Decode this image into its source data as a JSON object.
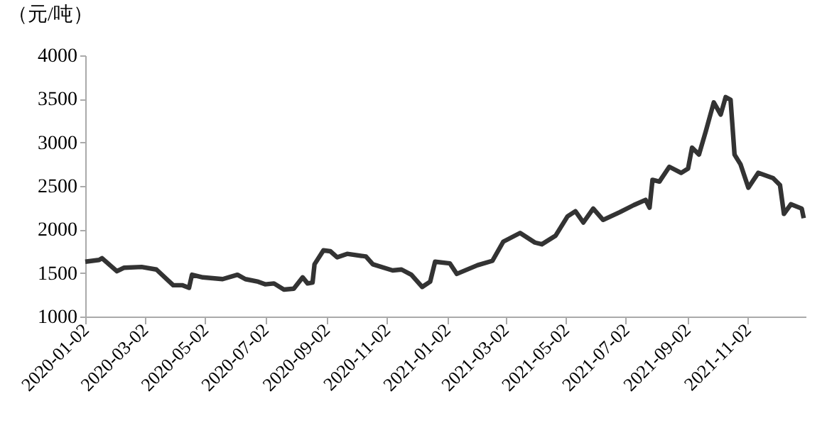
{
  "chart_data": {
    "type": "line",
    "ylabel": "（元/吨）",
    "x": [
      "2020-01-02",
      "2020-01-16",
      "2020-01-19",
      "2020-02-03",
      "2020-02-10",
      "2020-02-28",
      "2020-03-14",
      "2020-03-31",
      "2020-04-09",
      "2020-04-16",
      "2020-04-19",
      "2020-04-30",
      "2020-05-20",
      "2020-06-04",
      "2020-06-12",
      "2020-06-25",
      "2020-07-02",
      "2020-07-11",
      "2020-07-21",
      "2020-07-31",
      "2020-08-09",
      "2020-08-14",
      "2020-08-19",
      "2020-08-21",
      "2020-08-30",
      "2020-09-06",
      "2020-09-13",
      "2020-09-23",
      "2020-10-12",
      "2020-10-19",
      "2020-11-08",
      "2020-11-17",
      "2020-11-27",
      "2020-12-08",
      "2020-12-16",
      "2020-12-21",
      "2021-01-05",
      "2021-01-12",
      "2021-02-02",
      "2021-02-17",
      "2021-02-28",
      "2021-03-17",
      "2021-04-01",
      "2021-04-08",
      "2021-04-22",
      "2021-05-04",
      "2021-05-12",
      "2021-05-20",
      "2021-05-30",
      "2021-06-09",
      "2021-06-26",
      "2021-07-10",
      "2021-07-22",
      "2021-07-26",
      "2021-07-29",
      "2021-08-05",
      "2021-08-15",
      "2021-08-27",
      "2021-09-03",
      "2021-09-07",
      "2021-09-14",
      "2021-09-21",
      "2021-09-29",
      "2021-10-06",
      "2021-10-11",
      "2021-10-16",
      "2021-10-20",
      "2021-10-26",
      "2021-11-03",
      "2021-11-13",
      "2021-11-28",
      "2021-12-05",
      "2021-12-09",
      "2021-12-16",
      "2021-12-27",
      "2021-12-29"
    ],
    "series": [
      {
        "color": "#333333",
        "values": [
          1630,
          1650,
          1670,
          1520,
          1560,
          1570,
          1540,
          1360,
          1360,
          1330,
          1480,
          1450,
          1430,
          1480,
          1430,
          1400,
          1370,
          1380,
          1310,
          1320,
          1450,
          1380,
          1390,
          1600,
          1760,
          1750,
          1680,
          1720,
          1690,
          1600,
          1530,
          1540,
          1480,
          1340,
          1400,
          1630,
          1610,
          1490,
          1590,
          1640,
          1860,
          1960,
          1850,
          1830,
          1930,
          2150,
          2210,
          2080,
          2240,
          2110,
          2200,
          2280,
          2340,
          2250,
          2570,
          2550,
          2720,
          2650,
          2700,
          2940,
          2860,
          3130,
          3460,
          3320,
          3520,
          3490,
          2860,
          2750,
          2480,
          2650,
          2590,
          2510,
          2180,
          2290,
          2240,
          2130
        ]
      }
    ],
    "xlim": [
      "2020-01-02",
      "2021-12-31"
    ],
    "xticks": [
      {
        "value": "2020-01-02",
        "label": "2020-01-02"
      },
      {
        "value": "2020-03-02",
        "label": "2020-03-02"
      },
      {
        "value": "2020-05-02",
        "label": "2020-05-02"
      },
      {
        "value": "2020-07-02",
        "label": "2020-07-02"
      },
      {
        "value": "2020-09-02",
        "label": "2020-09-02"
      },
      {
        "value": "2020-11-02",
        "label": "2020-11-02"
      },
      {
        "value": "2021-01-02",
        "label": "2021-01-02"
      },
      {
        "value": "2021-03-02",
        "label": "2021-03-02"
      },
      {
        "value": "2021-05-02",
        "label": "2021-05-02"
      },
      {
        "value": "2021-07-02",
        "label": "2021-07-02"
      },
      {
        "value": "2021-09-02",
        "label": "2021-09-02"
      },
      {
        "value": "2021-11-02",
        "label": "2021-11-02"
      }
    ],
    "ylim": [
      1000,
      4000
    ],
    "yticks": [
      1000,
      1500,
      2000,
      2500,
      3000,
      3500,
      4000
    ],
    "grid": false,
    "marker": "none",
    "line_style": "solid"
  }
}
